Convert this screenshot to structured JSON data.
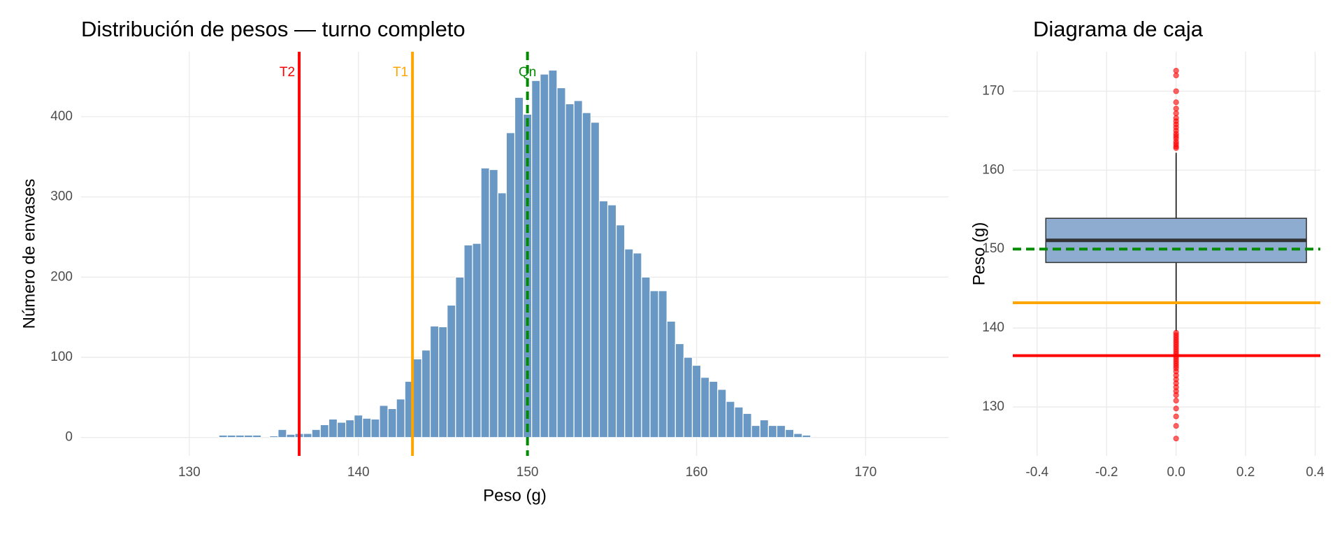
{
  "chart_data": [
    {
      "type": "histogram",
      "title": "Distribución de pesos — turno completo",
      "x_label": "Peso (g)",
      "y_label": "Número de envases",
      "bins": [
        131.75,
        132.25,
        132.75,
        133.25,
        133.75,
        134.25,
        134.75,
        135.25,
        135.75,
        136.25,
        136.75,
        137.25,
        137.75,
        138.25,
        138.75,
        139.25,
        139.75,
        140.25,
        140.75,
        141.25,
        141.75,
        142.25,
        142.75,
        143.25,
        143.75,
        144.25,
        144.75,
        145.25,
        145.75,
        146.25,
        146.75,
        147.25,
        147.75,
        148.25,
        148.75,
        149.25,
        149.75,
        150.25,
        150.75,
        151.25,
        151.75,
        152.25,
        152.75,
        153.25,
        153.75,
        154.25,
        154.75,
        155.25,
        155.75,
        156.25,
        156.75,
        157.25,
        157.75,
        158.25,
        158.75,
        159.25,
        159.75,
        160.25,
        160.75,
        161.25,
        161.75,
        162.25,
        162.75,
        163.25,
        163.75,
        164.25,
        164.75,
        165.25,
        165.75,
        166.25,
        166.75
      ],
      "values": [
        3,
        3,
        3,
        3,
        3,
        0,
        2,
        10,
        4,
        5,
        5,
        10,
        16,
        23,
        19,
        22,
        28,
        24,
        23,
        40,
        36,
        48,
        70,
        98,
        109,
        139,
        138,
        165,
        200,
        240,
        242,
        336,
        334,
        305,
        380,
        424,
        403,
        445,
        453,
        458,
        436,
        416,
        420,
        405,
        393,
        295,
        290,
        265,
        235,
        230,
        200,
        183,
        183,
        145,
        117,
        100,
        90,
        75,
        70,
        60,
        45,
        38,
        30,
        15,
        22,
        15,
        15,
        10,
        5,
        3
      ],
      "color": "#6a98c4",
      "xlim": [
        123.6,
        174.9
      ],
      "ylim": [
        -22.9,
        480.9
      ],
      "xticks": [
        130,
        140,
        150,
        160,
        170
      ],
      "yticks": [
        0,
        100,
        200,
        300,
        400
      ],
      "grid": true,
      "reference_lines": [
        {
          "value": 136.5,
          "label": "T2",
          "color": "#ff0000",
          "linestyle": "solid"
        },
        {
          "value": 143.2,
          "label": "T1",
          "color": "#ffa500",
          "linestyle": "solid"
        },
        {
          "value": 150,
          "label": "Qn",
          "color": "#008b00",
          "linestyle": "dashed"
        }
      ]
    },
    {
      "type": "box",
      "title": "Diagrama de caja",
      "y_label": "Peso (g)",
      "q1": 148.3,
      "median": 151.1,
      "q3": 153.9,
      "whisker_low": 139.6,
      "whisker_high": 162.2,
      "outliers": [
        162.8,
        163.0,
        163.3,
        163.6,
        164.0,
        164.3,
        164.6,
        165.0,
        165.4,
        165.8,
        166.2,
        166.6,
        167.2,
        167.8,
        168.6,
        170.0,
        172.0,
        172.6,
        139.4,
        139.1,
        138.8,
        138.5,
        138.2,
        137.9,
        137.6,
        137.3,
        137.0,
        136.7,
        136.4,
        136.1,
        135.8,
        135.5,
        135.2,
        134.9,
        134.5,
        134.0,
        133.5,
        133.0,
        132.5,
        132.0,
        131.5,
        130.8,
        129.8,
        128.8,
        127.6,
        126.0
      ],
      "color": "#8eabd0",
      "outlier_color": "#ff0000",
      "xlim": [
        -0.47,
        0.415
      ],
      "ylim": [
        123.8,
        175
      ],
      "xticks": [
        -0.4,
        -0.2,
        {
          "value": 0,
          "label": "0.0"
        },
        0.2,
        0.4
      ],
      "yticks": [
        130,
        140,
        150,
        160,
        170
      ],
      "grid": true,
      "reference_lines": [
        {
          "value": 150,
          "color": "#008b00",
          "linestyle": "dashed"
        },
        {
          "value": 143.2,
          "color": "#ffa500",
          "linestyle": "solid"
        },
        {
          "value": 136.5,
          "color": "#ff0000",
          "linestyle": "solid"
        }
      ]
    }
  ]
}
